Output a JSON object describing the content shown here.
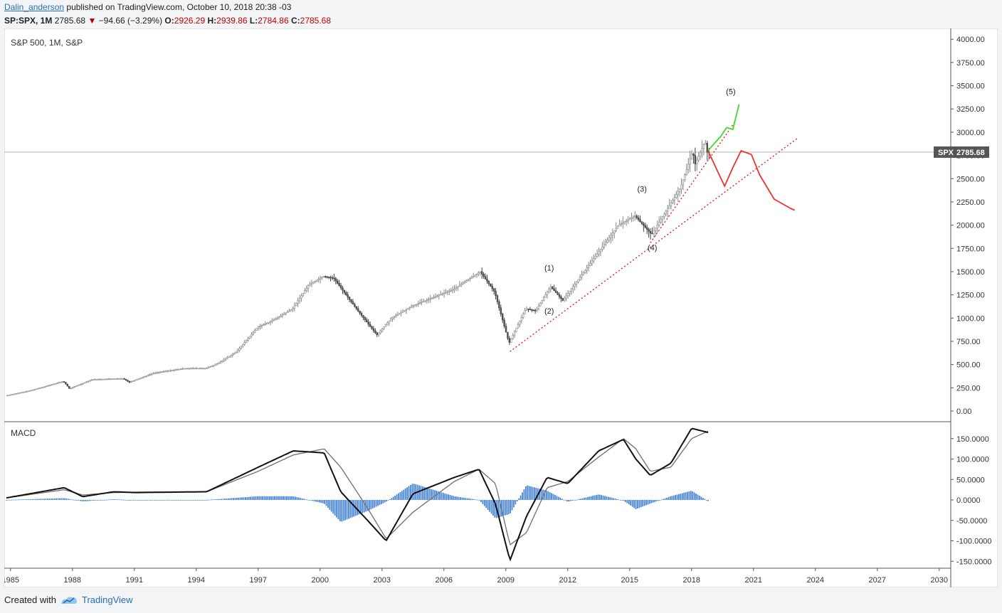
{
  "header": {
    "author": "Dalin_anderson",
    "published_text": "published on TradingView.com, October 10, 2018 20:38 -03",
    "symbol": "SP:SPX, 1M",
    "last": "2785.68",
    "change": "−94.66 (−3.29%)",
    "o_label": "O:",
    "o": "2926.29",
    "h_label": "H:",
    "h": "2939.86",
    "l_label": "L:",
    "l": "2784.86",
    "c_label": "C:",
    "c": "2785.68"
  },
  "chart_title": "S&P 500, 1M, S&P",
  "macd_title": "MACD",
  "price_tag": {
    "symbol": "SPX",
    "value": "2785.68"
  },
  "colors": {
    "candle": "#555555",
    "macd_line": "#111111",
    "signal_line": "#777777",
    "histogram": "#4a86d8",
    "trend_line": "#e0202a",
    "bull_path": "#3ddc2a",
    "bear_path": "#f03030"
  },
  "footer": {
    "created_with": "Created with",
    "brand": "TradingView"
  },
  "chart_data": [
    {
      "type": "line",
      "title": "S&P 500, 1M, S&P",
      "x_axis_ticks": [
        "1985",
        "1988",
        "1991",
        "1994",
        "1997",
        "2000",
        "2003",
        "2006",
        "2009",
        "2012",
        "2015",
        "2018",
        "2021",
        "2024",
        "2027",
        "2030"
      ],
      "y_axis_ticks": [
        "0.00",
        "250.00",
        "500.00",
        "750.00",
        "1000.00",
        "1250.00",
        "1500.00",
        "1750.00",
        "2000.00",
        "2250.00",
        "2500.00",
        "2750.00",
        "3000.00",
        "3250.00",
        "3500.00",
        "3750.00",
        "4000.00"
      ],
      "ylim": [
        0,
        4000
      ],
      "series": [
        {
          "x": [
            1984.8,
            1986,
            1987.6,
            1987.9,
            1989,
            1990.5,
            1990.8,
            1992,
            1993.5,
            1994.5,
            1995,
            1996,
            1997,
            1997.8,
            1998.7,
            1999.5,
            2000.2,
            2000.7,
            2001.7,
            2002.5,
            2002.8,
            2003.5,
            2004.5,
            2005.5,
            2006.5,
            2007.8,
            2008.5,
            2009.2,
            2010,
            2010.5,
            2011.2,
            2011.8,
            2012.5,
            2013.5,
            2014.5,
            2015.3,
            2016.1,
            2016.8,
            2017.5,
            2018.1,
            2018.2,
            2018.7,
            2018.8
          ],
          "y": [
            165,
            220,
            320,
            240,
            340,
            350,
            310,
            410,
            460,
            460,
            500,
            640,
            900,
            980,
            1100,
            1360,
            1450,
            1430,
            1130,
            900,
            820,
            1000,
            1130,
            1220,
            1310,
            1500,
            1280,
            730,
            1100,
            1080,
            1340,
            1190,
            1400,
            1700,
            2000,
            2100,
            1900,
            2150,
            2400,
            2800,
            2650,
            2900,
            2785
          ]
        }
      ],
      "annotations": [
        "(1)",
        "(2)",
        "(3)",
        "(4)",
        "(5)"
      ],
      "last_price": 2785.68
    },
    {
      "type": "line",
      "title": "MACD",
      "y_axis_ticks": [
        "-150.0000",
        "-100.0000",
        "-50.0000",
        "0.0000",
        "50.0000",
        "100.0000",
        "150.0000"
      ],
      "ylim": [
        -160,
        180
      ],
      "series": [
        {
          "x": [
            1984.8,
            1987.6,
            1988.5,
            1990,
            1991,
            1994.5,
            1997,
            1998.7,
            2000.2,
            2001,
            2002.3,
            2003.2,
            2004.5,
            2006.5,
            2007.7,
            2008.5,
            2009.2,
            2010,
            2011,
            2012,
            2013.5,
            2014.7,
            2015.3,
            2016,
            2017,
            2018,
            2018.8
          ],
          "y": [
            5,
            30,
            8,
            20,
            18,
            20,
            80,
            120,
            115,
            20,
            -50,
            -100,
            15,
            55,
            75,
            -10,
            -148,
            -40,
            55,
            40,
            120,
            148,
            100,
            60,
            90,
            175,
            165
          ]
        },
        {
          "x": [
            1984.8,
            1987.6,
            1988.5,
            1990,
            1991,
            1994.5,
            1997,
            1998.7,
            2000.2,
            2001,
            2002.3,
            2003.2,
            2004.5,
            2006.5,
            2007.7,
            2008.5,
            2009.2,
            2010,
            2011,
            2012,
            2013.5,
            2014.7,
            2015.3,
            2016,
            2017,
            2018,
            2018.8
          ],
          "y": [
            5,
            25,
            12,
            18,
            19,
            20,
            70,
            110,
            125,
            80,
            -20,
            -95,
            -30,
            45,
            75,
            40,
            -110,
            -80,
            30,
            45,
            105,
            150,
            125,
            70,
            80,
            150,
            168
          ]
        }
      ]
    }
  ]
}
